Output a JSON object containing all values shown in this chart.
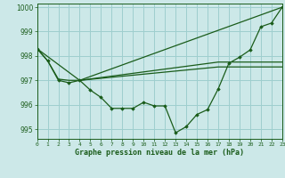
{
  "bg_color": "#cce8e8",
  "grid_color": "#9ecece",
  "line_color": "#1a5c1a",
  "xlabel": "Graphe pression niveau de la mer (hPa)",
  "xlim": [
    0,
    23
  ],
  "ylim": [
    994.6,
    1000.15
  ],
  "yticks": [
    995,
    996,
    997,
    998,
    999,
    1000
  ],
  "xticks": [
    0,
    1,
    2,
    3,
    4,
    5,
    6,
    7,
    8,
    9,
    10,
    11,
    12,
    13,
    14,
    15,
    16,
    17,
    18,
    19,
    20,
    21,
    22,
    23
  ],
  "series_line1": {
    "x": [
      0,
      1,
      2,
      3,
      4
    ],
    "y": [
      998.3,
      997.8,
      997.05,
      997.0,
      997.0
    ]
  },
  "series_main": {
    "x": [
      0,
      1,
      2,
      3,
      4,
      5,
      6,
      7,
      8,
      9,
      10,
      11,
      12,
      13,
      14,
      15,
      16,
      17,
      18,
      19,
      20,
      21,
      22,
      23
    ],
    "y": [
      998.3,
      997.8,
      997.0,
      996.9,
      997.0,
      996.6,
      996.3,
      995.85,
      995.85,
      995.85,
      996.1,
      995.95,
      995.95,
      994.85,
      995.1,
      995.6,
      995.8,
      996.65,
      997.7,
      997.95,
      998.25,
      999.2,
      999.35,
      1000.0
    ]
  },
  "series_tri_top": {
    "x": [
      0,
      4,
      23
    ],
    "y": [
      998.3,
      997.0,
      1000.0
    ]
  },
  "series_flat1": {
    "x": [
      4,
      17,
      23
    ],
    "y": [
      997.0,
      997.75,
      997.75
    ]
  },
  "series_flat2": {
    "x": [
      4,
      17,
      23
    ],
    "y": [
      997.0,
      997.55,
      997.55
    ]
  }
}
